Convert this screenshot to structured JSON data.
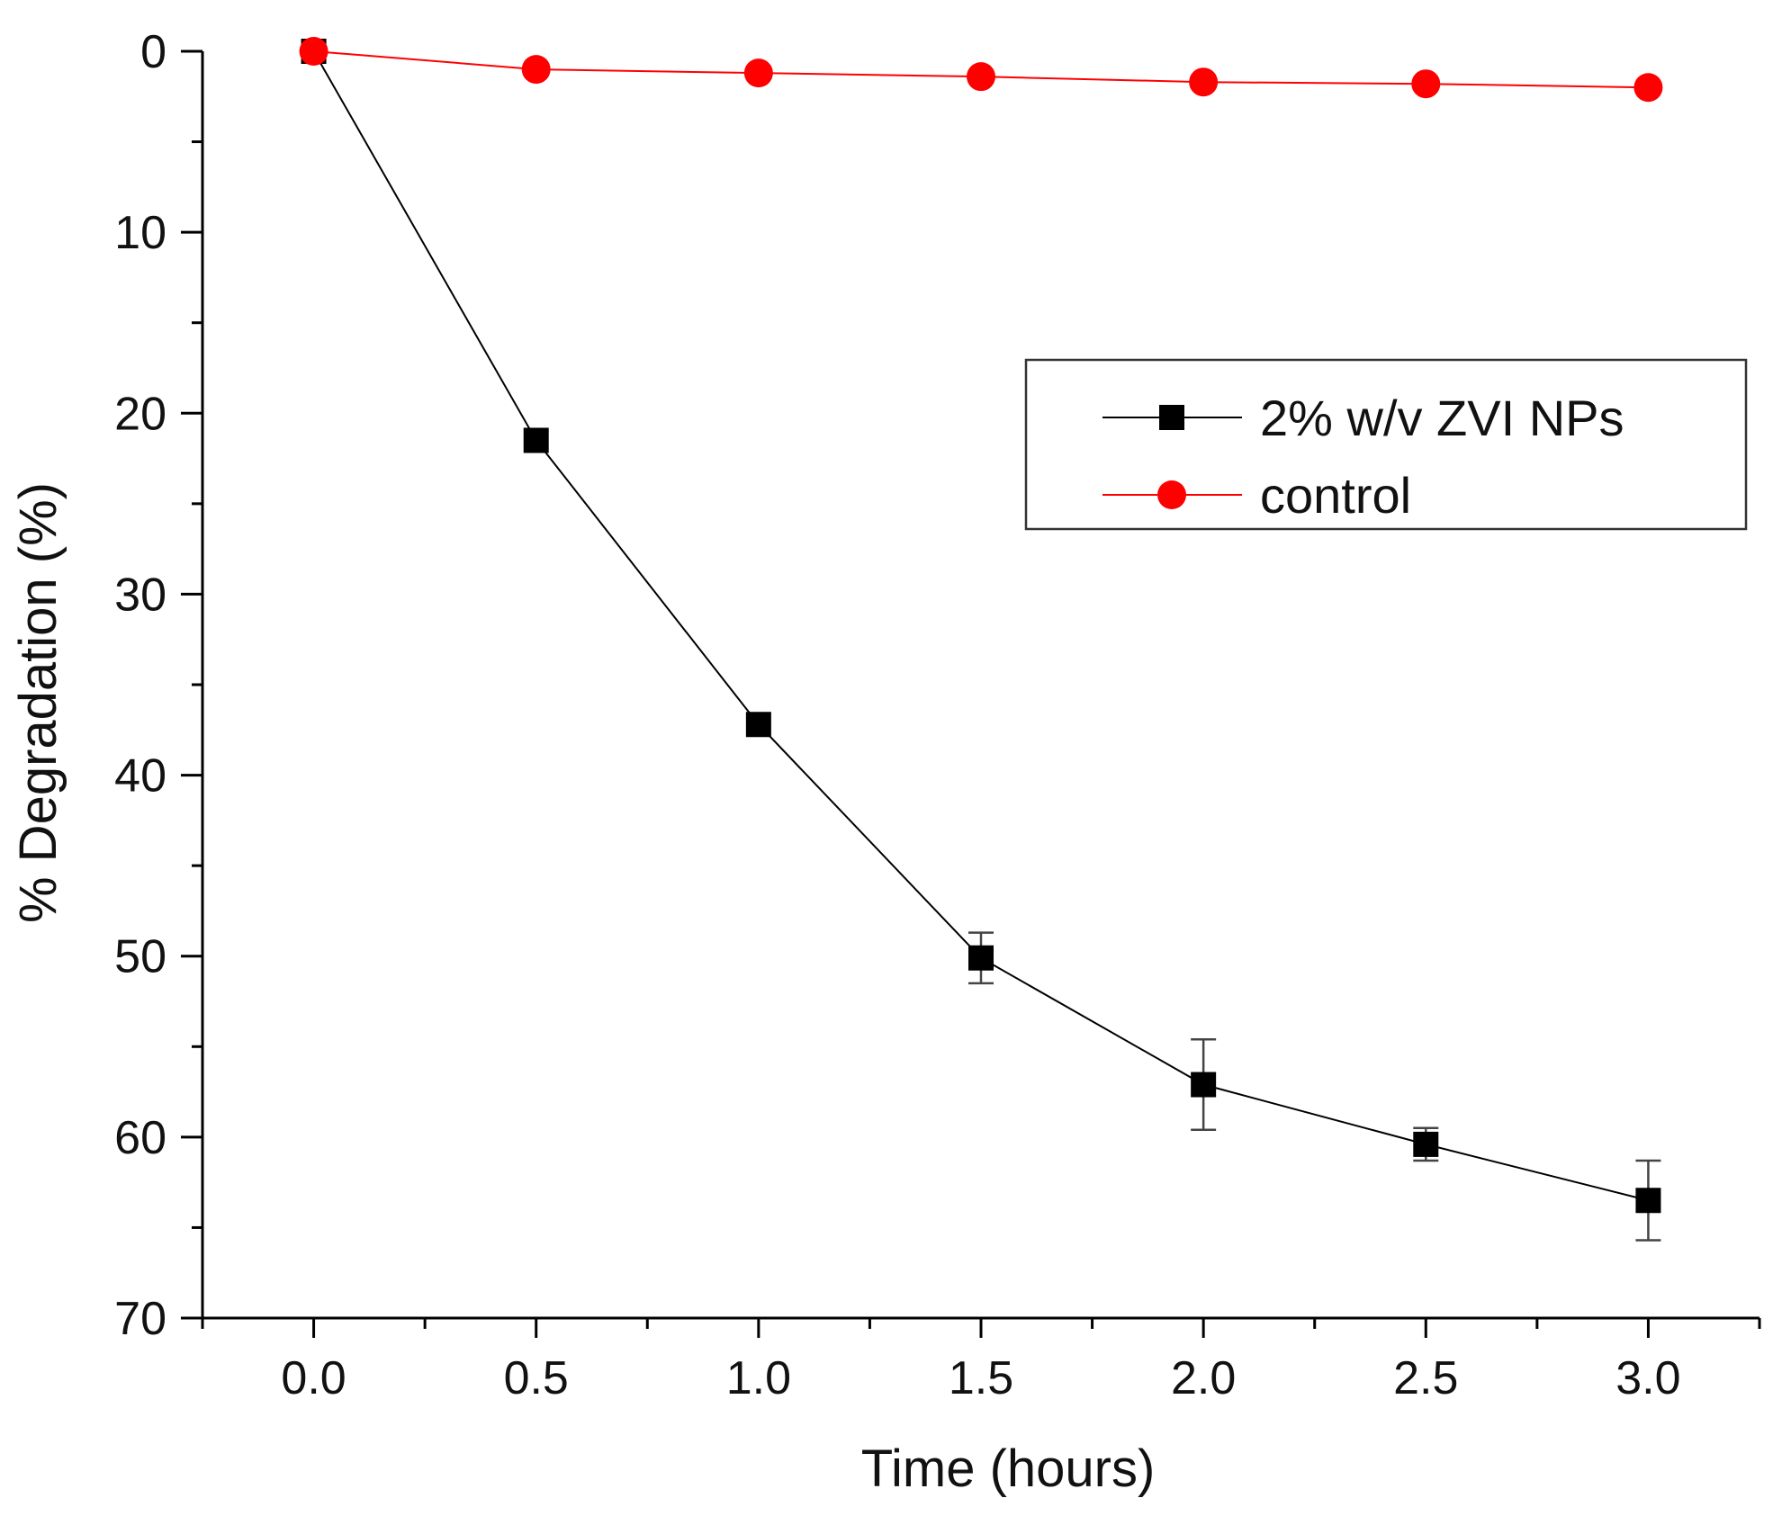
{
  "chart_data": {
    "type": "line",
    "title": "",
    "xlabel": "Time (hours)",
    "ylabel": "% Degradation (%)",
    "x": [
      0.0,
      0.5,
      1.0,
      1.5,
      2.0,
      2.5,
      3.0
    ],
    "xlim": [
      -0.25,
      3.25
    ],
    "ylim": [
      0,
      70
    ],
    "y_inverted": true,
    "xticks": [
      "0.0",
      "0.5",
      "1.0",
      "1.5",
      "2.0",
      "2.5",
      "3.0"
    ],
    "xtick_values": [
      0.0,
      0.5,
      1.0,
      1.5,
      2.0,
      2.5,
      3.0
    ],
    "yticks": [
      "0",
      "10",
      "20",
      "30",
      "40",
      "50",
      "60",
      "70"
    ],
    "ytick_values": [
      0,
      10,
      20,
      30,
      40,
      50,
      60,
      70
    ],
    "grid": false,
    "legend_position": "top-right",
    "series": [
      {
        "name": "2% w/v ZVI NPs",
        "color": "#000000",
        "marker": "square",
        "values": [
          0.0,
          21.5,
          37.2,
          50.1,
          57.1,
          60.4,
          63.5
        ],
        "errors": [
          0.0,
          0.0,
          0.0,
          1.4,
          2.5,
          0.9,
          2.2
        ]
      },
      {
        "name": "control",
        "color": "#ff0000",
        "marker": "circle",
        "values": [
          0.0,
          1.0,
          1.2,
          1.4,
          1.7,
          1.8,
          2.0
        ],
        "errors": [
          0,
          0,
          0,
          0,
          0,
          0,
          0
        ]
      }
    ]
  }
}
